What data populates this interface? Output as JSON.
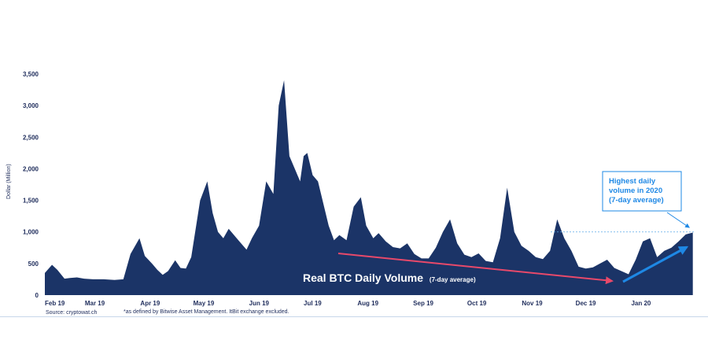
{
  "chart_data": {
    "type": "area",
    "title": "",
    "ylabel": "Dollar (Million)",
    "xlabel": "",
    "ylim": [
      0,
      3500
    ],
    "y_ticks": [
      "0",
      "500",
      "1,000",
      "1,500",
      "2,000",
      "2,500",
      "3,000",
      "3,500"
    ],
    "x_ticks": [
      "Feb 19",
      "Mar 19",
      "Apr 19",
      "May 19",
      "Jun 19",
      "Jul 19",
      "Aug 19",
      "Sep 19",
      "Oct 19",
      "Nov 19",
      "Dec 19",
      "Jan 20"
    ],
    "fill_color": "#1b3467",
    "series": [
      {
        "name": "Real BTC Daily Volume",
        "x": [
          "2019-02-01",
          "2019-02-05",
          "2019-02-08",
          "2019-02-12",
          "2019-02-15",
          "2019-02-19",
          "2019-02-23",
          "2019-02-28",
          "2019-03-06",
          "2019-03-12",
          "2019-03-17",
          "2019-03-21",
          "2019-03-26",
          "2019-03-29",
          "2019-04-02",
          "2019-04-05",
          "2019-04-08",
          "2019-04-11",
          "2019-04-15",
          "2019-04-18",
          "2019-04-21",
          "2019-04-24",
          "2019-04-29",
          "2019-05-03",
          "2019-05-06",
          "2019-05-09",
          "2019-05-12",
          "2019-05-15",
          "2019-05-18",
          "2019-05-21",
          "2019-05-25",
          "2019-05-28",
          "2019-06-01",
          "2019-06-05",
          "2019-06-09",
          "2019-06-12",
          "2019-06-15",
          "2019-06-18",
          "2019-06-21",
          "2019-06-24",
          "2019-06-26",
          "2019-06-28",
          "2019-07-01",
          "2019-07-04",
          "2019-07-07",
          "2019-07-10",
          "2019-07-13",
          "2019-07-16",
          "2019-07-20",
          "2019-07-24",
          "2019-07-28",
          "2019-07-31",
          "2019-08-04",
          "2019-08-07",
          "2019-08-11",
          "2019-08-15",
          "2019-08-19",
          "2019-08-23",
          "2019-08-27",
          "2019-08-31",
          "2019-09-04",
          "2019-09-08",
          "2019-09-12",
          "2019-09-16",
          "2019-09-20",
          "2019-09-24",
          "2019-09-28",
          "2019-10-02",
          "2019-10-06",
          "2019-10-10",
          "2019-10-14",
          "2019-10-18",
          "2019-10-22",
          "2019-10-26",
          "2019-10-30",
          "2019-11-03",
          "2019-11-07",
          "2019-11-11",
          "2019-11-15",
          "2019-11-19",
          "2019-11-23",
          "2019-11-27",
          "2019-12-01",
          "2019-12-05",
          "2019-12-09",
          "2019-12-13",
          "2019-12-17",
          "2019-12-21",
          "2019-12-25",
          "2019-12-29",
          "2020-01-02",
          "2020-01-06",
          "2020-01-10",
          "2020-01-14",
          "2020-01-18",
          "2020-01-22",
          "2020-01-26",
          "2020-01-30"
        ],
        "values": [
          350,
          480,
          400,
          260,
          270,
          280,
          260,
          250,
          250,
          240,
          250,
          650,
          900,
          620,
          500,
          400,
          320,
          380,
          550,
          430,
          420,
          600,
          1500,
          1800,
          1300,
          1000,
          900,
          1050,
          950,
          850,
          720,
          900,
          1100,
          1800,
          1600,
          3000,
          3400,
          2200,
          2000,
          1800,
          2200,
          2250,
          1900,
          1800,
          1450,
          1100,
          870,
          950,
          870,
          1400,
          1550,
          1100,
          900,
          980,
          850,
          760,
          740,
          820,
          650,
          580,
          580,
          750,
          1000,
          1200,
          820,
          640,
          600,
          660,
          540,
          520,
          900,
          1700,
          1000,
          780,
          700,
          600,
          570,
          700,
          1200,
          900,
          700,
          450,
          420,
          440,
          500,
          560,
          430,
          380,
          330,
          560,
          850,
          900,
          600,
          700,
          750,
          850,
          960,
          990
        ]
      }
    ],
    "annotations": {
      "inside_label": "Real BTC Daily Volume",
      "inside_label_note": "(7-day average)",
      "callout": "Highest daily volume in 2020 (7-day average)",
      "reference_level": 1000
    },
    "colors": {
      "area": "#1b3467",
      "down_arrow": "#e8496a",
      "up_arrow": "#1e88e5",
      "callout": "#1e88e5"
    }
  },
  "footer": {
    "source": "Source: cryptowat.ch",
    "note": "*as defined by Bitwise Asset Management. ItBit exchange excluded."
  }
}
